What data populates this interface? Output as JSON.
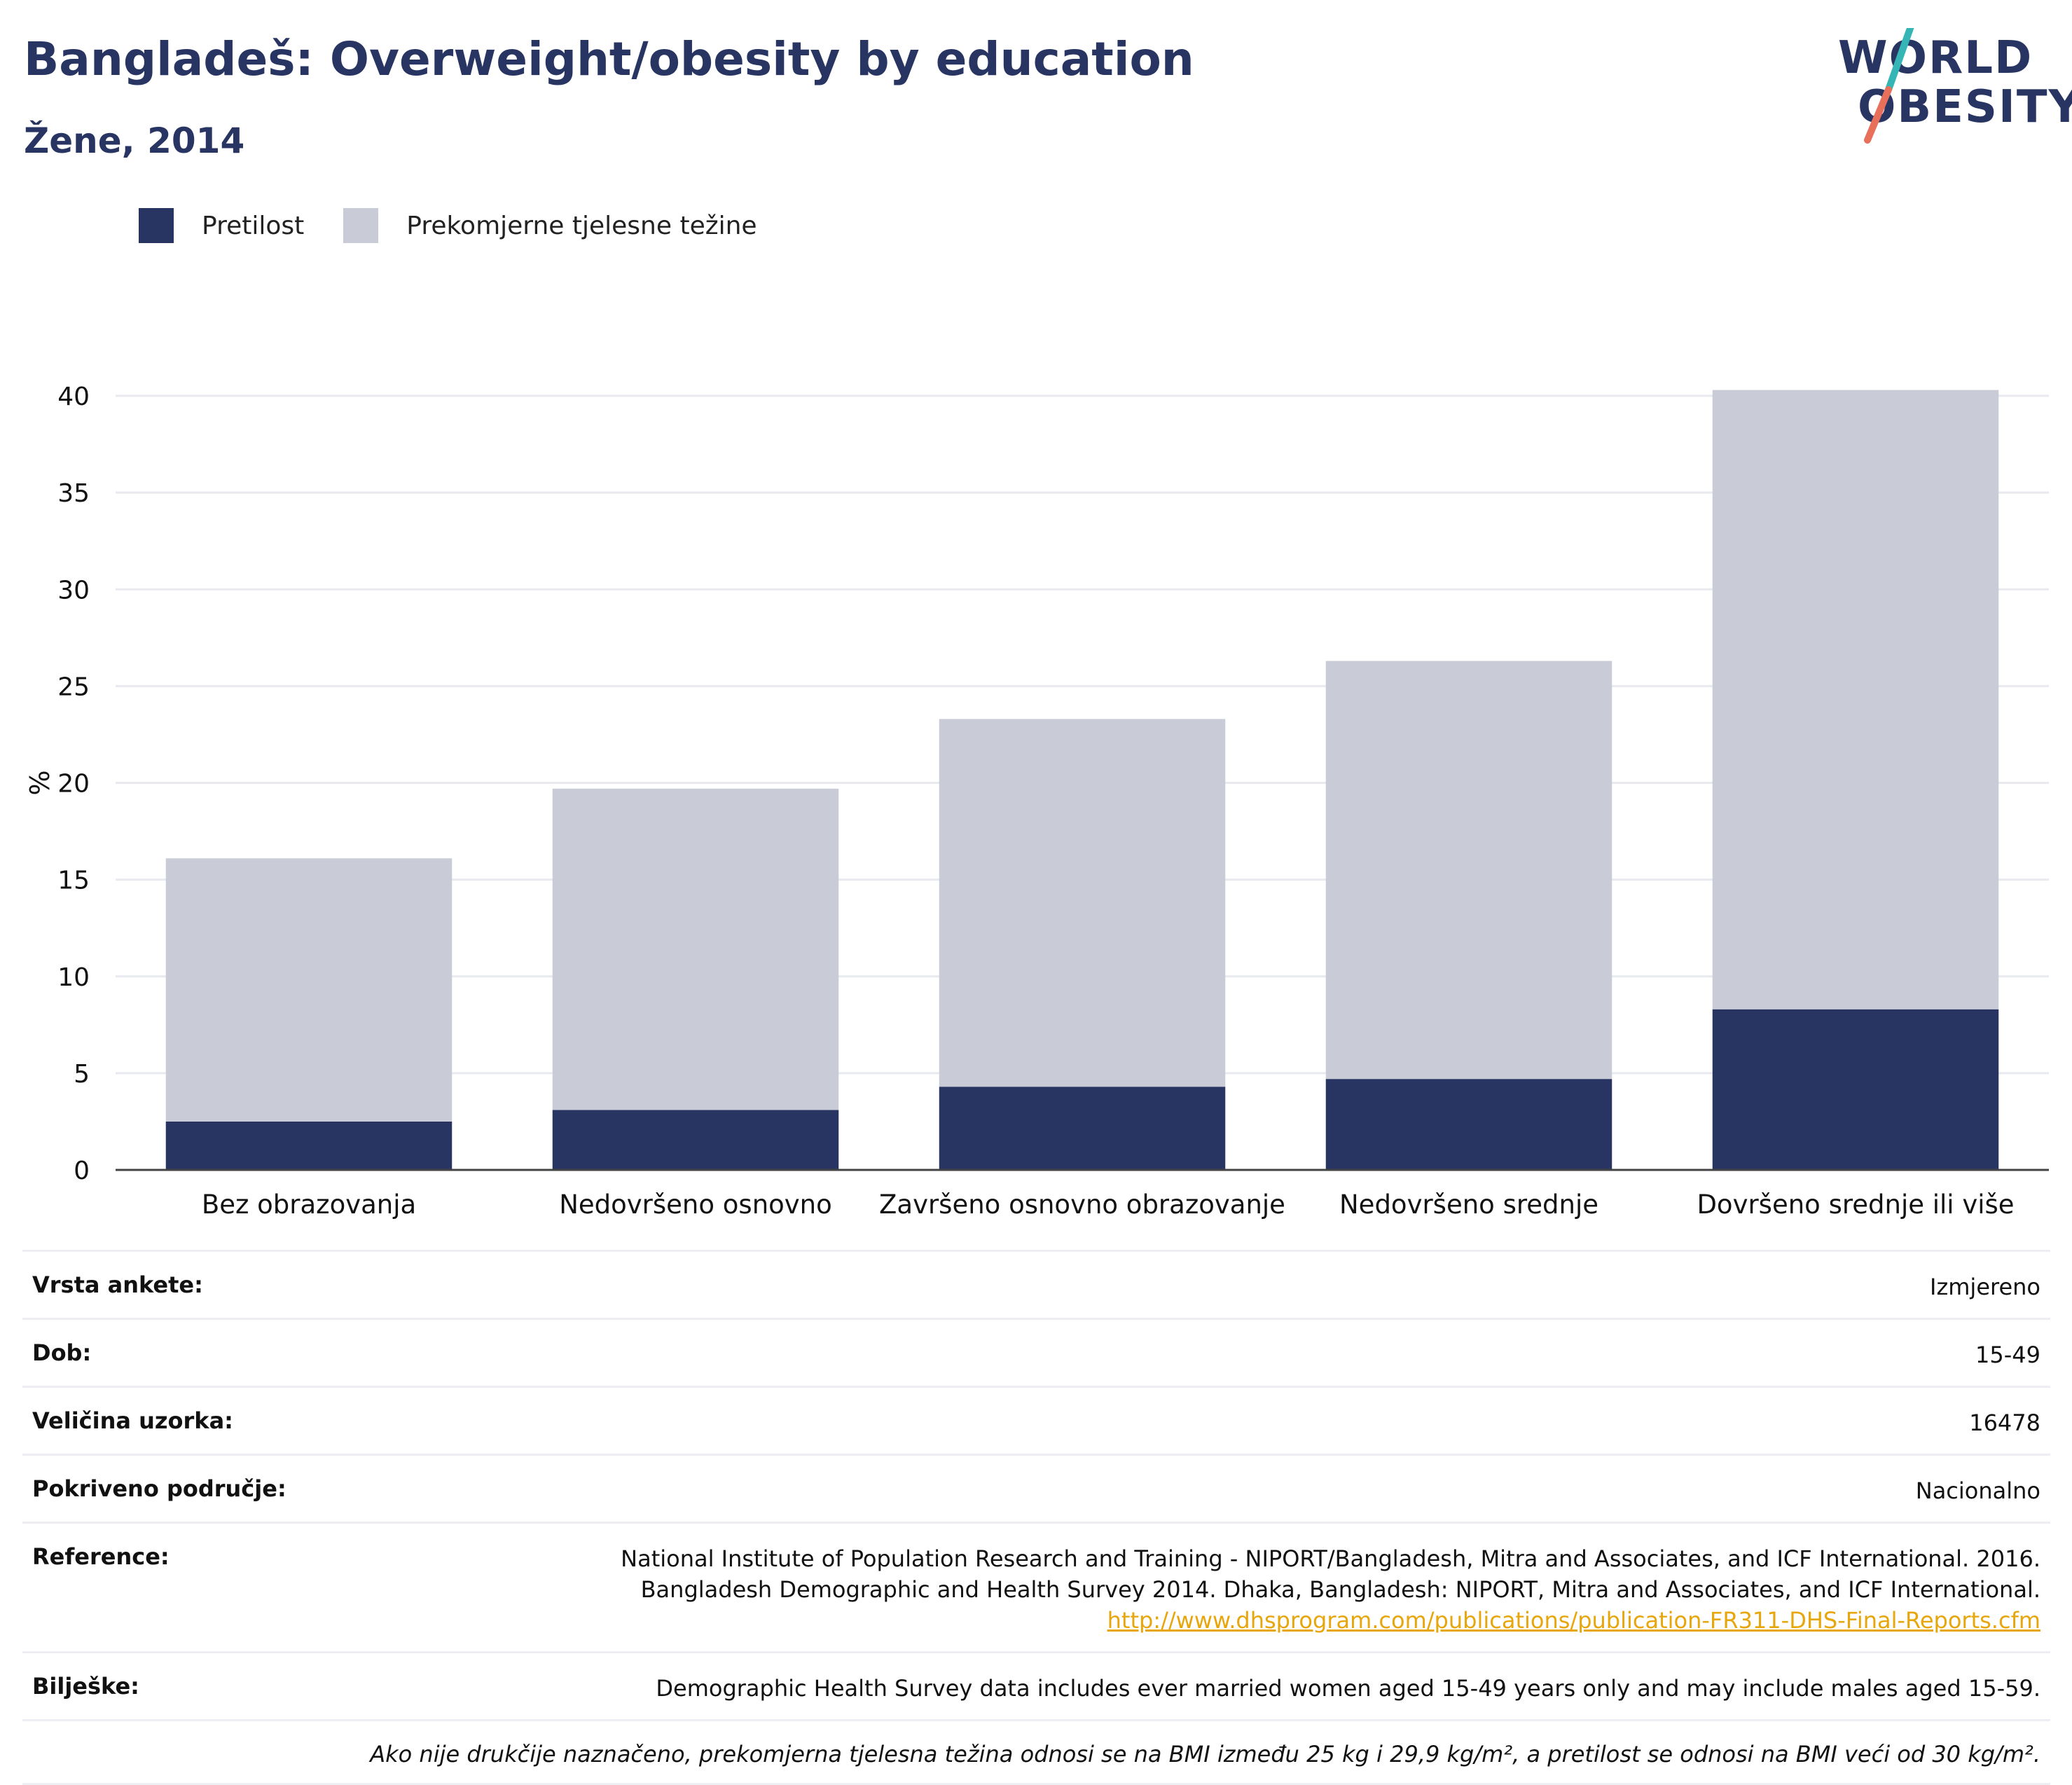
{
  "title": "Bangladeš: Overweight/obesity by education",
  "subtitle": "Žene, 2014",
  "logo": {
    "line1": "WORLD",
    "line2": "OBESITY"
  },
  "colors": {
    "obesity": "#283562",
    "overweight": "#c9cbd6",
    "accent_teal": "#35b5b5",
    "accent_coral": "#e8705a"
  },
  "legend": [
    {
      "label": "Pretilost",
      "color": "#283562"
    },
    {
      "label": "Prekomjerne tjelesne težine",
      "color": "#c9cbd6"
    }
  ],
  "chart_data": {
    "type": "bar",
    "stacked": true,
    "categories": [
      "Bez obrazovanja",
      "Nedovršeno osnovno",
      "Završeno osnovno obrazovanje",
      "Nedovršeno srednje",
      "Dovršeno srednje ili više"
    ],
    "series": [
      {
        "name": "Pretilost",
        "values": [
          2.5,
          3.1,
          4.3,
          4.7,
          8.3
        ]
      },
      {
        "name": "Prekomjerne tjelesne težine",
        "values": [
          13.6,
          16.6,
          19.0,
          21.6,
          32.0
        ]
      }
    ],
    "ylabel": "%",
    "ylim": [
      0,
      40
    ],
    "yticks": [
      0,
      5,
      10,
      15,
      20,
      25,
      30,
      35,
      40
    ],
    "grid": true
  },
  "info": {
    "survey_type": {
      "key": "Vrsta ankete:",
      "value": "Izmjereno"
    },
    "age": {
      "key": "Dob:",
      "value": "15-49"
    },
    "sample": {
      "key": "Veličina uzorka:",
      "value": "16478"
    },
    "coverage": {
      "key": "Pokriveno područje:",
      "value": "Nacionalno"
    },
    "reference": {
      "key": "Reference:",
      "line1": "National Institute of Population Research and Training - NIPORT/Bangladesh, Mitra and Associates, and ICF International. 2016.",
      "line2": "Bangladesh Demographic and Health Survey 2014. Dhaka, Bangladesh: NIPORT, Mitra and Associates, and ICF International.",
      "link": "http://www.dhsprogram.com/publications/publication-FR311-DHS-Final-Reports.cfm"
    },
    "notes": {
      "key": "Bilješke:",
      "value": "Demographic Health Survey data includes ever married women aged 15-49 years only and may include males aged 15-59."
    },
    "footnote": "Ako nije drukčije naznačeno, prekomjerna tjelesna težina odnosi se na BMI između 25 kg i 29,9 kg/m², a pretilost se odnosi na BMI veći od 30 kg/m²."
  }
}
